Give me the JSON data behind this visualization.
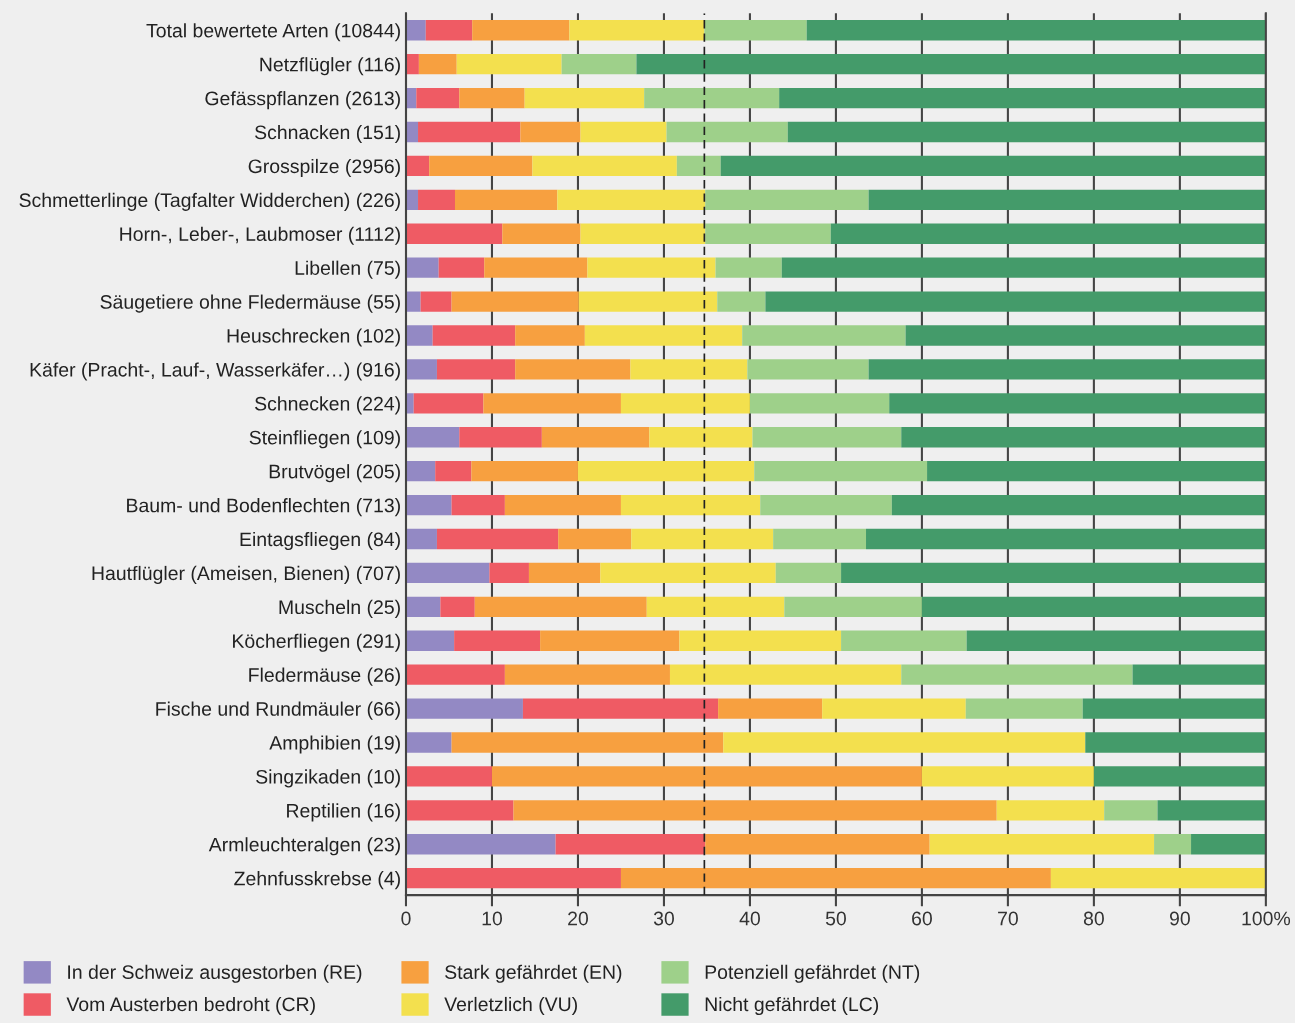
{
  "chart_data": {
    "type": "bar",
    "orientation": "horizontal",
    "stacked": true,
    "categories": [
      "Total bewertete Arten (10844)",
      "Netzflügler (116)",
      "Gefässpflanzen (2613)",
      "Schnacken (151)",
      "Grosspilze (2956)",
      "Schmetterlinge (Tagfalter Widderchen) (226)",
      "Horn-, Leber-, Laubmoser (1112)",
      "Libellen (75)",
      "Säugetiere ohne Fledermäuse (55)",
      "Heuschrecken (102)",
      "Käfer (Pracht-, Lauf-, Wasserkäfer…) (916)",
      "Schnecken (224)",
      "Steinfliegen (109)",
      "Brutvögel (205)",
      "Baum- und Bodenflechten (713)",
      "Eintagsfliegen (84)",
      "Hautflügler (Ameisen, Bienen) (707)",
      "Muscheln (25)",
      "Köcherfliegen (291)",
      "Fledermäuse (26)",
      "Fische und Rundmäuler (66)",
      "Amphibien (19)",
      "Singzikaden (10)",
      "Reptilien (16)",
      "Armleuchteralgen (23)",
      "Zehnfusskrebse (4)"
    ],
    "series": [
      {
        "name": "In der Schweiz ausgestorben (RE)",
        "color": "#9389c4",
        "values": [
          2.3,
          0,
          1.2,
          1.4,
          0,
          1.4,
          0,
          3.8,
          1.7,
          3.1,
          3.6,
          0.9,
          6.2,
          3.4,
          5.3,
          3.6,
          9.7,
          4,
          5.6,
          0,
          13.6,
          5.3,
          0,
          0,
          17.4,
          0
        ]
      },
      {
        "name": "Vom Austerben bedroht (CR)",
        "color": "#ef5b64",
        "values": [
          5.4,
          1.5,
          5.0,
          11.9,
          2.7,
          4.3,
          11.2,
          5.3,
          3.6,
          9.6,
          9.1,
          8.1,
          9.6,
          4.2,
          6.2,
          14.1,
          4.6,
          4,
          10.0,
          11.5,
          22.7,
          0,
          10,
          12.5,
          17.4,
          25
        ]
      },
      {
        "name": "Stark gefährdet (EN)",
        "color": "#f7a040",
        "values": [
          11.3,
          4.4,
          7.6,
          7.0,
          12.0,
          11.9,
          9.1,
          12.0,
          14.8,
          8.1,
          13.4,
          16.0,
          12.5,
          12.4,
          13.5,
          8.5,
          8.3,
          20,
          16.2,
          19.2,
          12.1,
          31.6,
          50,
          56.2,
          26.1,
          50
        ]
      },
      {
        "name": "Verletzlich (VU)",
        "color": "#f3e04e",
        "values": [
          15.7,
          12.2,
          13.9,
          10.0,
          16.8,
          17.2,
          14.5,
          14.9,
          16.1,
          18.3,
          13.6,
          15.0,
          12.0,
          20.5,
          16.2,
          16.5,
          20.4,
          16,
          18.8,
          26.9,
          16.7,
          42.1,
          20,
          12.5,
          26.1,
          25
        ]
      },
      {
        "name": "Potenziell gefährdet (NT)",
        "color": "#9ed08a",
        "values": [
          11.9,
          8.7,
          15.7,
          14.1,
          5.1,
          19.0,
          14.6,
          7.7,
          5.6,
          19.0,
          14.1,
          16.2,
          17.3,
          20.1,
          15.3,
          10.8,
          7.6,
          16,
          14.6,
          26.9,
          13.6,
          0,
          0,
          6.2,
          4.3,
          0
        ]
      },
      {
        "name": "Nicht gefährdet (LC)",
        "color": "#449b6a",
        "values": [
          53.4,
          73.2,
          56.5,
          55.6,
          63.4,
          46.2,
          50.6,
          56.3,
          58.2,
          41.9,
          46.2,
          43.8,
          42.4,
          39.4,
          43.5,
          46.5,
          49.4,
          40,
          34.8,
          15.4,
          21.2,
          21.1,
          20,
          12.5,
          8.7,
          0
        ]
      }
    ],
    "xlim": [
      0,
      100
    ],
    "xticks": [
      0,
      10,
      20,
      30,
      40,
      50,
      60,
      70,
      80,
      90,
      {
        "value": 100,
        "label": "100%"
      }
    ],
    "ref_lines": [
      {
        "axis": "x",
        "value": 34.7,
        "color": "#222222",
        "line_style": "dashed"
      }
    ],
    "grid": "x",
    "legend": "bottom"
  }
}
